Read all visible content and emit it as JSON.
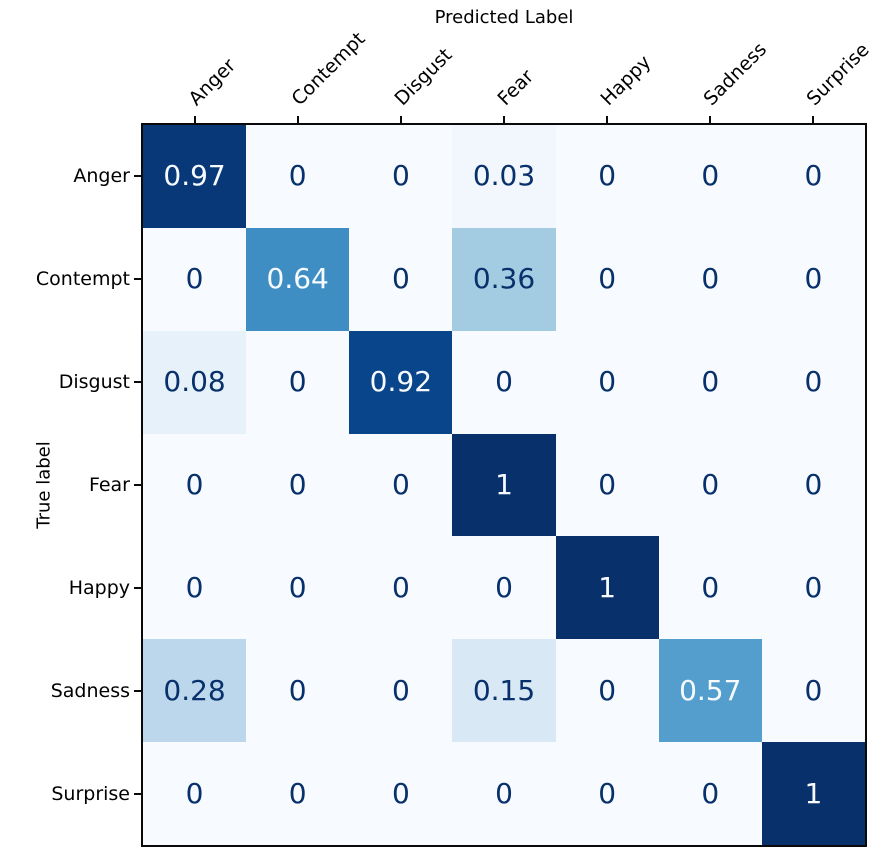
{
  "chart_data": {
    "type": "heatmap",
    "subtype": "confusion-matrix",
    "xlabel": "Predicted Label",
    "xlabel_position": "top",
    "ylabel": "True label",
    "x_tick_labels": [
      "Anger",
      "Contempt",
      "Disgust",
      "Fear",
      "Happy",
      "Sadness",
      "Surprise"
    ],
    "x_tick_rotation_deg": 45,
    "y_tick_labels": [
      "Anger",
      "Contempt",
      "Disgust",
      "Fear",
      "Happy",
      "Sadness",
      "Surprise"
    ],
    "matrix": [
      [
        0.97,
        0,
        0,
        0.03,
        0,
        0,
        0
      ],
      [
        0,
        0.64,
        0,
        0.36,
        0,
        0,
        0
      ],
      [
        0.08,
        0,
        0.92,
        0,
        0,
        0,
        0
      ],
      [
        0,
        0,
        0,
        1,
        0,
        0,
        0
      ],
      [
        0,
        0,
        0,
        0,
        1,
        0,
        0
      ],
      [
        0.28,
        0,
        0,
        0.15,
        0,
        0.57,
        0
      ],
      [
        0,
        0,
        0,
        0,
        0,
        0,
        1
      ]
    ],
    "vmin": 0,
    "vmax": 1,
    "colormap": {
      "name": "Blues",
      "anchors": [
        {
          "t": 0,
          "color": "#f7fbff"
        },
        {
          "t": 0.125,
          "color": "#deebf7"
        },
        {
          "t": 0.25,
          "color": "#c6dbef"
        },
        {
          "t": 0.375,
          "color": "#9ecae1"
        },
        {
          "t": 0.5,
          "color": "#6baed6"
        },
        {
          "t": 0.625,
          "color": "#4292c6"
        },
        {
          "t": 0.75,
          "color": "#2171b5"
        },
        {
          "t": 0.875,
          "color": "#08519c"
        },
        {
          "t": 1,
          "color": "#08306b"
        }
      ]
    },
    "cell_text": {
      "light_color": "#f7fbff",
      "dark_color": "#08306b",
      "light_threshold": 0.5
    },
    "grid": false,
    "legend": false,
    "colorbar": false
  }
}
